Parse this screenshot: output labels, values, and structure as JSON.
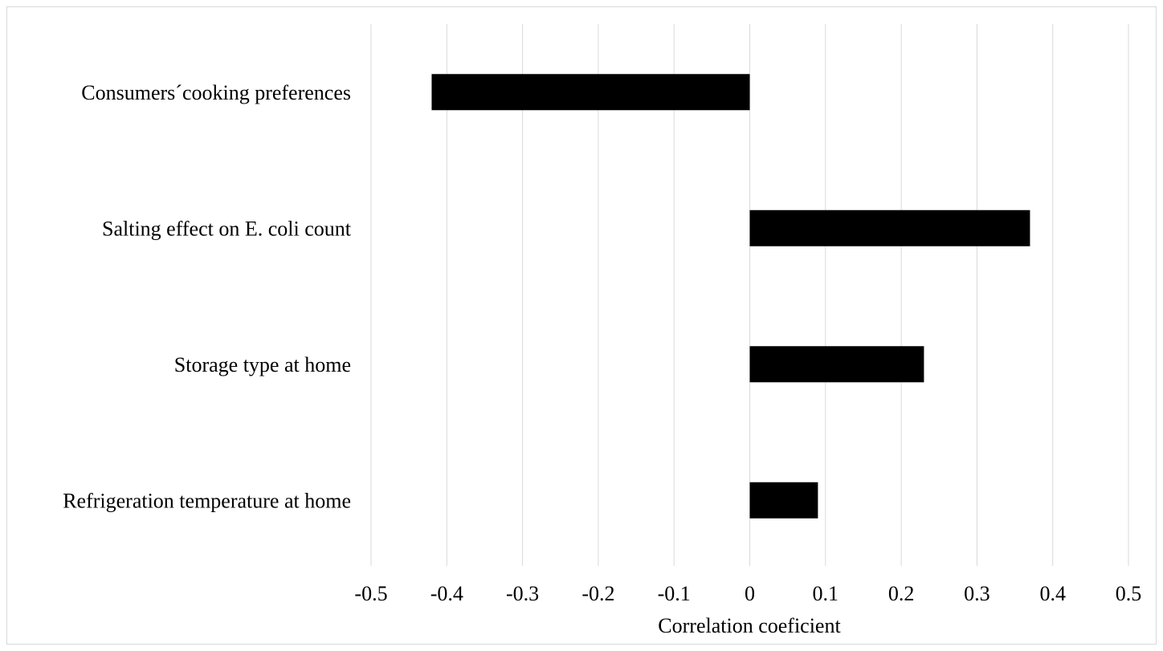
{
  "chart_data": {
    "type": "bar",
    "orientation": "horizontal",
    "categories": [
      "Consumers´cooking preferences",
      "Salting effect on E. coli count",
      "Storage type at home",
      "Refrigeration temperature at home"
    ],
    "values": [
      -0.42,
      0.37,
      0.23,
      0.09
    ],
    "xlabel": "Correlation coeficient",
    "ylabel": "",
    "xlim": [
      -0.5,
      0.5
    ],
    "xticks": [
      -0.5,
      -0.4,
      -0.3,
      -0.2,
      -0.1,
      0,
      0.1,
      0.2,
      0.3,
      0.4,
      0.5
    ],
    "xtick_labels": [
      "-0.5",
      "-0.4",
      "-0.3",
      "-0.2",
      "-0.1",
      "0",
      "0.1",
      "0.2",
      "0.3",
      "0.4",
      "0.5"
    ],
    "grid": "vertical",
    "legend": "none",
    "colors": {
      "bar": "#000000",
      "grid": "#d9d9d9",
      "border": "#d9d9d9"
    }
  }
}
